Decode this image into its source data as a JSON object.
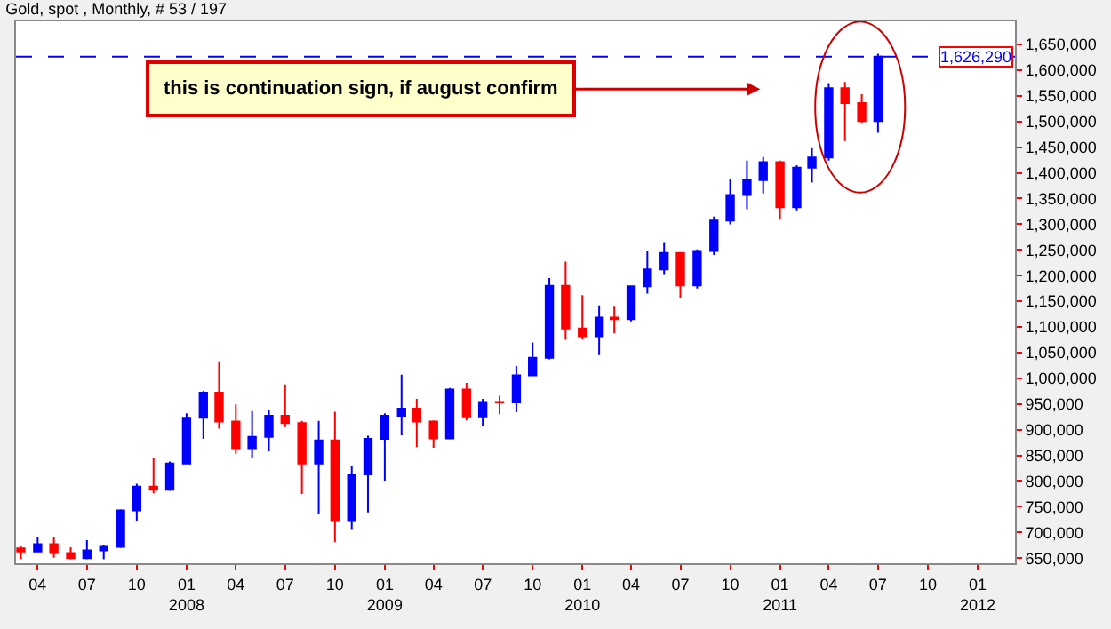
{
  "chart_data": {
    "type": "candlestick",
    "title": "Gold, spot , Monthly, # 53 / 197",
    "x": [
      "2007-03",
      "2007-04",
      "2007-05",
      "2007-06",
      "2007-07",
      "2007-08",
      "2007-09",
      "2007-10",
      "2007-11",
      "2007-12",
      "2008-01",
      "2008-02",
      "2008-03",
      "2008-04",
      "2008-05",
      "2008-06",
      "2008-07",
      "2008-08",
      "2008-09",
      "2008-10",
      "2008-11",
      "2008-12",
      "2009-01",
      "2009-02",
      "2009-03",
      "2009-04",
      "2009-05",
      "2009-06",
      "2009-07",
      "2009-08",
      "2009-09",
      "2009-10",
      "2009-11",
      "2009-12",
      "2010-01",
      "2010-02",
      "2010-03",
      "2010-04",
      "2010-05",
      "2010-06",
      "2010-07",
      "2010-08",
      "2010-09",
      "2010-10",
      "2010-11",
      "2010-12",
      "2011-01",
      "2011-02",
      "2011-03",
      "2011-04",
      "2011-05",
      "2011-06",
      "2011-07"
    ],
    "ohlc": [
      [
        669000,
        673000,
        648000,
        663000
      ],
      [
        663000,
        692000,
        662000,
        677000
      ],
      [
        677000,
        692000,
        651000,
        660000
      ],
      [
        660000,
        671000,
        648000,
        650000
      ],
      [
        650000,
        685000,
        648000,
        665000
      ],
      [
        665000,
        675000,
        648000,
        672000
      ],
      [
        672000,
        745000,
        670000,
        743000
      ],
      [
        743000,
        795000,
        723000,
        789000
      ],
      [
        789000,
        845000,
        776000,
        783000
      ],
      [
        783000,
        838000,
        781000,
        834000
      ],
      [
        834000,
        932000,
        833000,
        923000
      ],
      [
        923000,
        975000,
        882000,
        972000
      ],
      [
        972000,
        1033000,
        902000,
        916000
      ],
      [
        916000,
        949000,
        853000,
        864000
      ],
      [
        864000,
        936000,
        845000,
        886000
      ],
      [
        886000,
        938000,
        858000,
        927000
      ],
      [
        927000,
        988000,
        905000,
        913000
      ],
      [
        913000,
        917000,
        775000,
        834000
      ],
      [
        834000,
        917000,
        735000,
        879000
      ],
      [
        879000,
        935000,
        681000,
        724000
      ],
      [
        724000,
        829000,
        705000,
        813000
      ],
      [
        813000,
        888000,
        739000,
        882000
      ],
      [
        882000,
        932000,
        801000,
        927000
      ],
      [
        927000,
        1007000,
        889000,
        941000
      ],
      [
        941000,
        960000,
        866000,
        916000
      ],
      [
        916000,
        918000,
        865000,
        883000
      ],
      [
        883000,
        981000,
        883000,
        978000
      ],
      [
        978000,
        991000,
        918000,
        926000
      ],
      [
        926000,
        960000,
        907000,
        954000
      ],
      [
        954000,
        966000,
        930000,
        953000
      ],
      [
        953000,
        1024000,
        934000,
        1006000
      ],
      [
        1006000,
        1070000,
        1004000,
        1040000
      ],
      [
        1040000,
        1195000,
        1037000,
        1180000
      ],
      [
        1180000,
        1227000,
        1075000,
        1097000
      ],
      [
        1097000,
        1162000,
        1076000,
        1082000
      ],
      [
        1082000,
        1142000,
        1045000,
        1118000
      ],
      [
        1118000,
        1141000,
        1088000,
        1115000
      ],
      [
        1115000,
        1181000,
        1111000,
        1179000
      ],
      [
        1179000,
        1249000,
        1165000,
        1212000
      ],
      [
        1212000,
        1265000,
        1203000,
        1244000
      ],
      [
        1244000,
        1244000,
        1157000,
        1181000
      ],
      [
        1181000,
        1251000,
        1175000,
        1248000
      ],
      [
        1248000,
        1315000,
        1240000,
        1307000
      ],
      [
        1307000,
        1388000,
        1300000,
        1357000
      ],
      [
        1357000,
        1424000,
        1329000,
        1386000
      ],
      [
        1386000,
        1431000,
        1360000,
        1421000
      ],
      [
        1421000,
        1424000,
        1309000,
        1333000
      ],
      [
        1333000,
        1415000,
        1327000,
        1410000
      ],
      [
        1410000,
        1448000,
        1381000,
        1430000
      ],
      [
        1430000,
        1575000,
        1424000,
        1565000
      ],
      [
        1565000,
        1577000,
        1462000,
        1536000
      ],
      [
        1536000,
        1553000,
        1496000,
        1501000
      ],
      [
        1501000,
        1632000,
        1478000,
        1626290
      ]
    ],
    "colors": [
      "#ff0000",
      "#0000ff",
      "#ff0000",
      "#ff0000",
      "#0000ff",
      "#0000ff",
      "#0000ff",
      "#0000ff",
      "#ff0000",
      "#0000ff",
      "#0000ff",
      "#0000ff",
      "#ff0000",
      "#ff0000",
      "#0000ff",
      "#0000ff",
      "#ff0000",
      "#ff0000",
      "#0000ff",
      "#ff0000",
      "#0000ff",
      "#0000ff",
      "#0000ff",
      "#0000ff",
      "#ff0000",
      "#ff0000",
      "#0000ff",
      "#ff0000",
      "#0000ff",
      "#ff0000",
      "#0000ff",
      "#0000ff",
      "#0000ff",
      "#ff0000",
      "#ff0000",
      "#0000ff",
      "#ff0000",
      "#0000ff",
      "#0000ff",
      "#0000ff",
      "#ff0000",
      "#0000ff",
      "#0000ff",
      "#0000ff",
      "#0000ff",
      "#0000ff",
      "#ff0000",
      "#0000ff",
      "#0000ff",
      "#0000ff",
      "#ff0000",
      "#ff0000",
      "#0000ff"
    ],
    "xlim": [
      "2007-02-20",
      "2012-03-10"
    ],
    "xticks": [
      {
        "value": "2007-04",
        "label": "04"
      },
      {
        "value": "2007-07",
        "label": "07"
      },
      {
        "value": "2007-10",
        "label": "10"
      },
      {
        "value": "2008-01",
        "label": "01\n2008"
      },
      {
        "value": "2008-04",
        "label": "04"
      },
      {
        "value": "2008-07",
        "label": "07"
      },
      {
        "value": "2008-10",
        "label": "10"
      },
      {
        "value": "2009-01",
        "label": "01\n2009"
      },
      {
        "value": "2009-04",
        "label": "04"
      },
      {
        "value": "2009-07",
        "label": "07"
      },
      {
        "value": "2009-10",
        "label": "10"
      },
      {
        "value": "2010-01",
        "label": "01\n2010"
      },
      {
        "value": "2010-04",
        "label": "04"
      },
      {
        "value": "2010-07",
        "label": "07"
      },
      {
        "value": "2010-10",
        "label": "10"
      },
      {
        "value": "2011-01",
        "label": "01\n2011"
      },
      {
        "value": "2011-04",
        "label": "04"
      },
      {
        "value": "2011-07",
        "label": "07"
      },
      {
        "value": "2011-10",
        "label": "10"
      },
      {
        "value": "2012-01",
        "label": "01\n2012"
      }
    ],
    "ylim": [
      640000,
      1695000
    ],
    "yticks": [
      {
        "value": 650000,
        "label": "650,000"
      },
      {
        "value": 700000,
        "label": "700,000"
      },
      {
        "value": 750000,
        "label": "750,000"
      },
      {
        "value": 800000,
        "label": "800,000"
      },
      {
        "value": 850000,
        "label": "850,000"
      },
      {
        "value": 900000,
        "label": "900,000"
      },
      {
        "value": 950000,
        "label": "950,000"
      },
      {
        "value": 1000000,
        "label": "1,000,000"
      },
      {
        "value": 1050000,
        "label": "1,050,000"
      },
      {
        "value": 1100000,
        "label": "1,100,000"
      },
      {
        "value": 1150000,
        "label": "1,150,000"
      },
      {
        "value": 1200000,
        "label": "1,200,000"
      },
      {
        "value": 1250000,
        "label": "1,250,000"
      },
      {
        "value": 1300000,
        "label": "1,300,000"
      },
      {
        "value": 1350000,
        "label": "1,350,000"
      },
      {
        "value": 1400000,
        "label": "1,400,000"
      },
      {
        "value": 1450000,
        "label": "1,450,000"
      },
      {
        "value": 1500000,
        "label": "1,500,000"
      },
      {
        "value": 1550000,
        "label": "1,550,000"
      },
      {
        "value": 1600000,
        "label": "1,600,000"
      },
      {
        "value": 1650000,
        "label": "1,650,000"
      }
    ],
    "ref_lines": [
      {
        "axis": "y",
        "value": 1626290,
        "label": "1,626,290",
        "color": "#0000ff",
        "line_style": "dashed"
      }
    ],
    "annotations": [
      "this is continuation sign, if august confirm"
    ],
    "legend": false
  }
}
